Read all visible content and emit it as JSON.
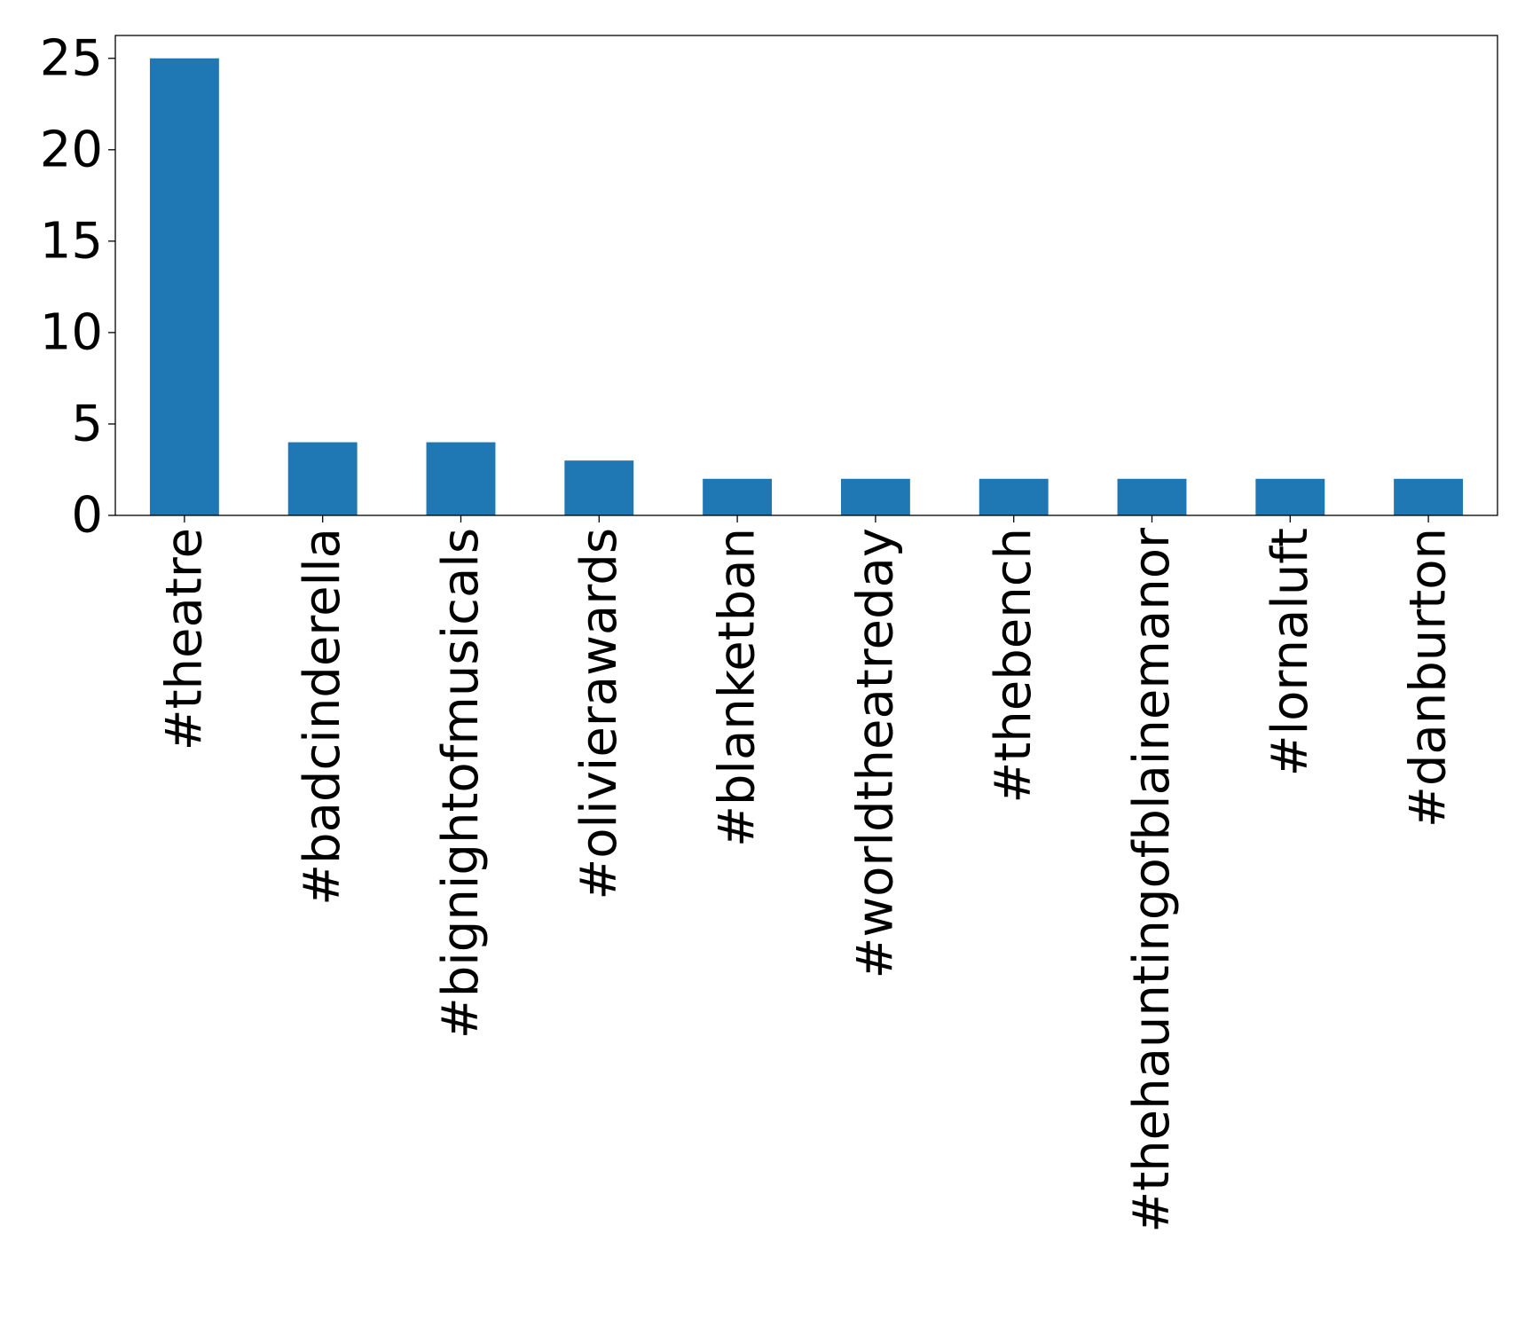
{
  "chart_data": {
    "type": "bar",
    "categories": [
      "#theatre",
      "#badcinderella",
      "#bignightofmusicals",
      "#olivierawards",
      "#blanketban",
      "#worldtheatreday",
      "#thebench",
      "#thehauntingofblainemanor",
      "#lornaluft",
      "#danburton"
    ],
    "values": [
      25,
      4,
      4,
      3,
      2,
      2,
      2,
      2,
      2,
      2
    ],
    "yticks": [
      0,
      5,
      10,
      15,
      20,
      25
    ],
    "ylim": [
      0,
      26.25
    ],
    "title": "",
    "xlabel": "",
    "ylabel": "",
    "grid": false,
    "bar_color": "#1f77b4"
  }
}
